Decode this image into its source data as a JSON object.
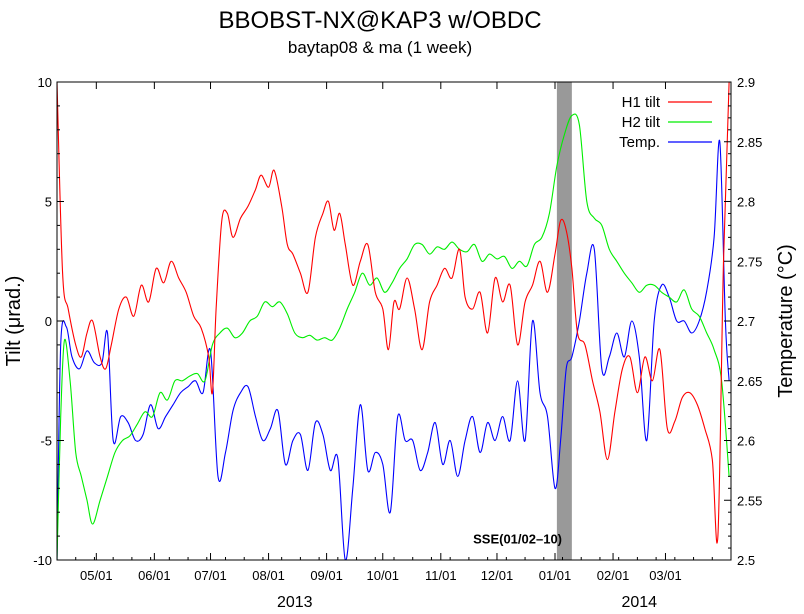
{
  "chart_data": {
    "type": "line",
    "title": "BBOBST-NX@KAP3 w/OBDC",
    "subtitle": "baytap08 & ma (1 week)",
    "ylabel_left": "Tilt (μrad.)",
    "ylabel_right": "Temperature (°C)",
    "ylim_left": [
      -10,
      10
    ],
    "ylim_right": [
      2.5,
      2.9
    ],
    "xlim": [
      "2013-04-10",
      "2014-04-05"
    ],
    "left_ticks": [
      -10,
      -5,
      0,
      5,
      10
    ],
    "right_ticks": [
      2.5,
      2.55,
      2.6,
      2.65,
      2.7,
      2.75,
      2.8,
      2.85,
      2.9
    ],
    "x_ticks": [
      {
        "date": "2013-05-01",
        "label": "05/01"
      },
      {
        "date": "2013-06-01",
        "label": "06/01"
      },
      {
        "date": "2013-07-01",
        "label": "07/01"
      },
      {
        "date": "2013-08-01",
        "label": "08/01"
      },
      {
        "date": "2013-09-01",
        "label": "09/01"
      },
      {
        "date": "2013-10-01",
        "label": "10/01"
      },
      {
        "date": "2013-11-01",
        "label": "11/01"
      },
      {
        "date": "2013-12-01",
        "label": "12/01"
      },
      {
        "date": "2014-01-01",
        "label": "01/01"
      },
      {
        "date": "2014-02-01",
        "label": "02/01"
      },
      {
        "date": "2014-03-01",
        "label": "03/01"
      }
    ],
    "year_labels": [
      {
        "date": "2013-08-15",
        "label": "2013"
      },
      {
        "date": "2014-02-15",
        "label": "2014"
      }
    ],
    "shaded_region": {
      "start": "2014-01-02",
      "end": "2014-01-10",
      "color": "#999999"
    },
    "annotation": {
      "text": "SSE(01/02–10)",
      "date": "2013-12-12",
      "value": -9.3
    },
    "grid": false,
    "legend_position": "top-right",
    "series": [
      {
        "name": "H1 tilt",
        "axis": "left",
        "color": "#ff0000",
        "x": [
          "2013-04-10",
          "2013-04-13",
          "2013-04-16",
          "2013-04-20",
          "2013-04-23",
          "2013-04-26",
          "2013-04-29",
          "2013-05-03",
          "2013-05-06",
          "2013-05-09",
          "2013-05-13",
          "2013-05-17",
          "2013-05-21",
          "2013-05-25",
          "2013-05-29",
          "2013-06-02",
          "2013-06-06",
          "2013-06-10",
          "2013-06-14",
          "2013-06-18",
          "2013-06-22",
          "2013-06-26",
          "2013-06-30",
          "2013-07-02",
          "2013-07-04",
          "2013-07-07",
          "2013-07-10",
          "2013-07-13",
          "2013-07-17",
          "2013-07-21",
          "2013-07-25",
          "2013-07-28",
          "2013-08-01",
          "2013-08-04",
          "2013-08-08",
          "2013-08-11",
          "2013-08-14",
          "2013-08-18",
          "2013-08-22",
          "2013-08-26",
          "2013-08-30",
          "2013-09-02",
          "2013-09-05",
          "2013-09-08",
          "2013-09-11",
          "2013-09-15",
          "2013-09-19",
          "2013-09-23",
          "2013-09-27",
          "2013-10-01",
          "2013-10-04",
          "2013-10-07",
          "2013-10-10",
          "2013-10-14",
          "2013-10-18",
          "2013-10-22",
          "2013-10-26",
          "2013-10-30",
          "2013-11-03",
          "2013-11-07",
          "2013-11-11",
          "2013-11-14",
          "2013-11-18",
          "2013-11-22",
          "2013-11-26",
          "2013-11-30",
          "2013-12-04",
          "2013-12-08",
          "2013-12-12",
          "2013-12-16",
          "2013-12-20",
          "2013-12-24",
          "2013-12-28",
          "2014-01-01",
          "2014-01-04",
          "2014-01-07",
          "2014-01-10",
          "2014-01-13",
          "2014-01-17",
          "2014-01-21",
          "2014-01-25",
          "2014-01-29",
          "2014-02-02",
          "2014-02-06",
          "2014-02-10",
          "2014-02-14",
          "2014-02-18",
          "2014-02-22",
          "2014-02-26",
          "2014-03-02",
          "2014-03-06",
          "2014-03-10",
          "2014-03-14",
          "2014-03-18",
          "2014-03-22",
          "2014-03-26",
          "2014-03-29",
          "2014-04-01",
          "2014-04-04"
        ],
        "y": [
          10,
          2,
          0.5,
          -1,
          -1.5,
          -0.5,
          0,
          -1.5,
          -2,
          -1,
          0.5,
          1,
          0.2,
          1.5,
          0.8,
          2.2,
          1.6,
          2.5,
          1.8,
          1.2,
          0.2,
          -0.3,
          -1.5,
          -3,
          0.5,
          4.2,
          4.5,
          3.5,
          4.3,
          4.8,
          5.5,
          6.1,
          5.6,
          6.3,
          4.8,
          3.2,
          2.8,
          2,
          1.2,
          3.5,
          4.5,
          5,
          3.8,
          4.5,
          3.2,
          1.5,
          2.5,
          3.2,
          1.2,
          0.5,
          -1.2,
          0.8,
          0.5,
          1.8,
          0.5,
          -1.2,
          0.8,
          1.5,
          2.2,
          1.8,
          3,
          1,
          0.5,
          1.2,
          -0.5,
          1.8,
          0.8,
          1.5,
          -1,
          0.8,
          1.5,
          2.5,
          1.2,
          2.8,
          4.2,
          3.8,
          2.2,
          -0.5,
          -1,
          -2.5,
          -3.8,
          -5.8,
          -3.8,
          -2,
          -1.5,
          -3,
          -1.5,
          -2.5,
          -1.2,
          -4.5,
          -4.2,
          -3.2,
          -3,
          -3.5,
          -4.5,
          -5.8,
          -9,
          2.5,
          10
        ]
      },
      {
        "name": "H2 tilt",
        "axis": "left",
        "color": "#00ee00",
        "x": [
          "2013-04-10",
          "2013-04-12",
          "2013-04-14",
          "2013-04-17",
          "2013-04-20",
          "2013-04-23",
          "2013-04-26",
          "2013-04-29",
          "2013-05-03",
          "2013-05-07",
          "2013-05-11",
          "2013-05-15",
          "2013-05-19",
          "2013-05-23",
          "2013-05-27",
          "2013-05-31",
          "2013-06-04",
          "2013-06-08",
          "2013-06-12",
          "2013-06-16",
          "2013-06-20",
          "2013-06-24",
          "2013-06-28",
          "2013-07-02",
          "2013-07-06",
          "2013-07-10",
          "2013-07-14",
          "2013-07-18",
          "2013-07-22",
          "2013-07-26",
          "2013-07-30",
          "2013-08-03",
          "2013-08-07",
          "2013-08-11",
          "2013-08-15",
          "2013-08-19",
          "2013-08-23",
          "2013-08-27",
          "2013-08-31",
          "2013-09-04",
          "2013-09-08",
          "2013-09-12",
          "2013-09-16",
          "2013-09-20",
          "2013-09-24",
          "2013-09-28",
          "2013-10-02",
          "2013-10-06",
          "2013-10-10",
          "2013-10-14",
          "2013-10-18",
          "2013-10-22",
          "2013-10-26",
          "2013-10-30",
          "2013-11-03",
          "2013-11-07",
          "2013-11-11",
          "2013-11-15",
          "2013-11-19",
          "2013-11-23",
          "2013-11-27",
          "2013-12-01",
          "2013-12-05",
          "2013-12-09",
          "2013-12-13",
          "2013-12-17",
          "2013-12-21",
          "2013-12-25",
          "2013-12-29",
          "2014-01-02",
          "2014-01-06",
          "2014-01-10",
          "2014-01-14",
          "2014-01-18",
          "2014-01-22",
          "2014-01-26",
          "2014-01-30",
          "2014-02-03",
          "2014-02-07",
          "2014-02-11",
          "2014-02-15",
          "2014-02-19",
          "2014-02-23",
          "2014-02-27",
          "2014-03-03",
          "2014-03-07",
          "2014-03-11",
          "2014-03-15",
          "2014-03-19",
          "2014-03-23",
          "2014-03-27",
          "2014-03-31",
          "2014-04-04"
        ],
        "y": [
          -10,
          -4,
          -0.8,
          -2.5,
          -5.5,
          -6.5,
          -7.5,
          -8.5,
          -7.5,
          -6.5,
          -5.5,
          -5,
          -4.8,
          -4.3,
          -3.8,
          -4,
          -3,
          -3.3,
          -2.5,
          -2.5,
          -2.3,
          -2.2,
          -2.5,
          -1,
          -0.5,
          -0.3,
          -0.7,
          -0.5,
          0,
          0.2,
          0.8,
          0.6,
          0.8,
          0.3,
          -0.5,
          -0.7,
          -0.6,
          -0.8,
          -0.7,
          -0.8,
          -0.3,
          0.5,
          1.2,
          2,
          1.5,
          1.8,
          1.2,
          1.6,
          2.2,
          2.6,
          3.2,
          3.2,
          2.8,
          3.1,
          3,
          3.3,
          3,
          2.9,
          3.2,
          2.5,
          2.8,
          2.6,
          2.7,
          2.2,
          2.5,
          2.3,
          3.2,
          3.5,
          4.5,
          6.5,
          7.8,
          8.6,
          8.2,
          5,
          4.3,
          4,
          3,
          2.5,
          2,
          1.6,
          1.2,
          1.5,
          1.5,
          1.2,
          1,
          0.8,
          1.3,
          0.5,
          0.2,
          -0.5,
          -1.2,
          -2.5,
          -6.5
        ]
      },
      {
        "name": "Temp.",
        "axis": "right",
        "color": "#0000ff",
        "x": [
          "2013-04-10",
          "2013-04-12",
          "2013-04-15",
          "2013-04-18",
          "2013-04-22",
          "2013-04-26",
          "2013-04-30",
          "2013-05-04",
          "2013-05-07",
          "2013-05-10",
          "2013-05-14",
          "2013-05-18",
          "2013-05-22",
          "2013-05-26",
          "2013-05-30",
          "2013-06-03",
          "2013-06-07",
          "2013-06-11",
          "2013-06-15",
          "2013-06-19",
          "2013-06-23",
          "2013-06-27",
          "2013-07-01",
          "2013-07-05",
          "2013-07-09",
          "2013-07-13",
          "2013-07-17",
          "2013-07-21",
          "2013-07-25",
          "2013-07-29",
          "2013-08-02",
          "2013-08-06",
          "2013-08-10",
          "2013-08-14",
          "2013-08-18",
          "2013-08-22",
          "2013-08-26",
          "2013-08-30",
          "2013-09-03",
          "2013-09-07",
          "2013-09-11",
          "2013-09-15",
          "2013-09-19",
          "2013-09-23",
          "2013-09-27",
          "2013-10-01",
          "2013-10-05",
          "2013-10-09",
          "2013-10-13",
          "2013-10-17",
          "2013-10-21",
          "2013-10-25",
          "2013-10-29",
          "2013-11-02",
          "2013-11-06",
          "2013-11-10",
          "2013-11-14",
          "2013-11-18",
          "2013-11-22",
          "2013-11-26",
          "2013-11-30",
          "2013-12-04",
          "2013-12-08",
          "2013-12-12",
          "2013-12-16",
          "2013-12-20",
          "2013-12-24",
          "2013-12-28",
          "2014-01-01",
          "2014-01-04",
          "2014-01-07",
          "2014-01-10",
          "2014-01-14",
          "2014-01-18",
          "2014-01-22",
          "2014-01-26",
          "2014-01-30",
          "2014-02-03",
          "2014-02-07",
          "2014-02-11",
          "2014-02-15",
          "2014-02-19",
          "2014-02-23",
          "2014-02-27",
          "2014-03-03",
          "2014-03-07",
          "2014-03-11",
          "2014-03-15",
          "2014-03-19",
          "2014-03-23",
          "2014-03-27",
          "2014-03-30",
          "2014-04-02",
          "2014-04-04"
        ],
        "y": [
          2.5,
          2.68,
          2.695,
          2.67,
          2.66,
          2.675,
          2.665,
          2.665,
          2.69,
          2.6,
          2.62,
          2.615,
          2.6,
          2.605,
          2.63,
          2.61,
          2.62,
          2.63,
          2.64,
          2.645,
          2.65,
          2.64,
          2.675,
          2.57,
          2.59,
          2.625,
          2.64,
          2.645,
          2.62,
          2.6,
          2.61,
          2.625,
          2.58,
          2.6,
          2.605,
          2.575,
          2.615,
          2.605,
          2.575,
          2.585,
          2.5,
          2.56,
          2.63,
          2.575,
          2.59,
          2.58,
          2.54,
          2.62,
          2.6,
          2.6,
          2.575,
          2.59,
          2.615,
          2.58,
          2.6,
          2.57,
          2.6,
          2.62,
          2.59,
          2.615,
          2.6,
          2.62,
          2.6,
          2.65,
          2.6,
          2.7,
          2.64,
          2.62,
          2.56,
          2.6,
          2.66,
          2.67,
          2.7,
          2.74,
          2.76,
          2.66,
          2.67,
          2.69,
          2.67,
          2.7,
          2.67,
          2.6,
          2.7,
          2.73,
          2.72,
          2.7,
          2.7,
          2.69,
          2.7,
          2.725,
          2.77,
          2.85,
          2.7,
          2.65
        ]
      }
    ]
  }
}
